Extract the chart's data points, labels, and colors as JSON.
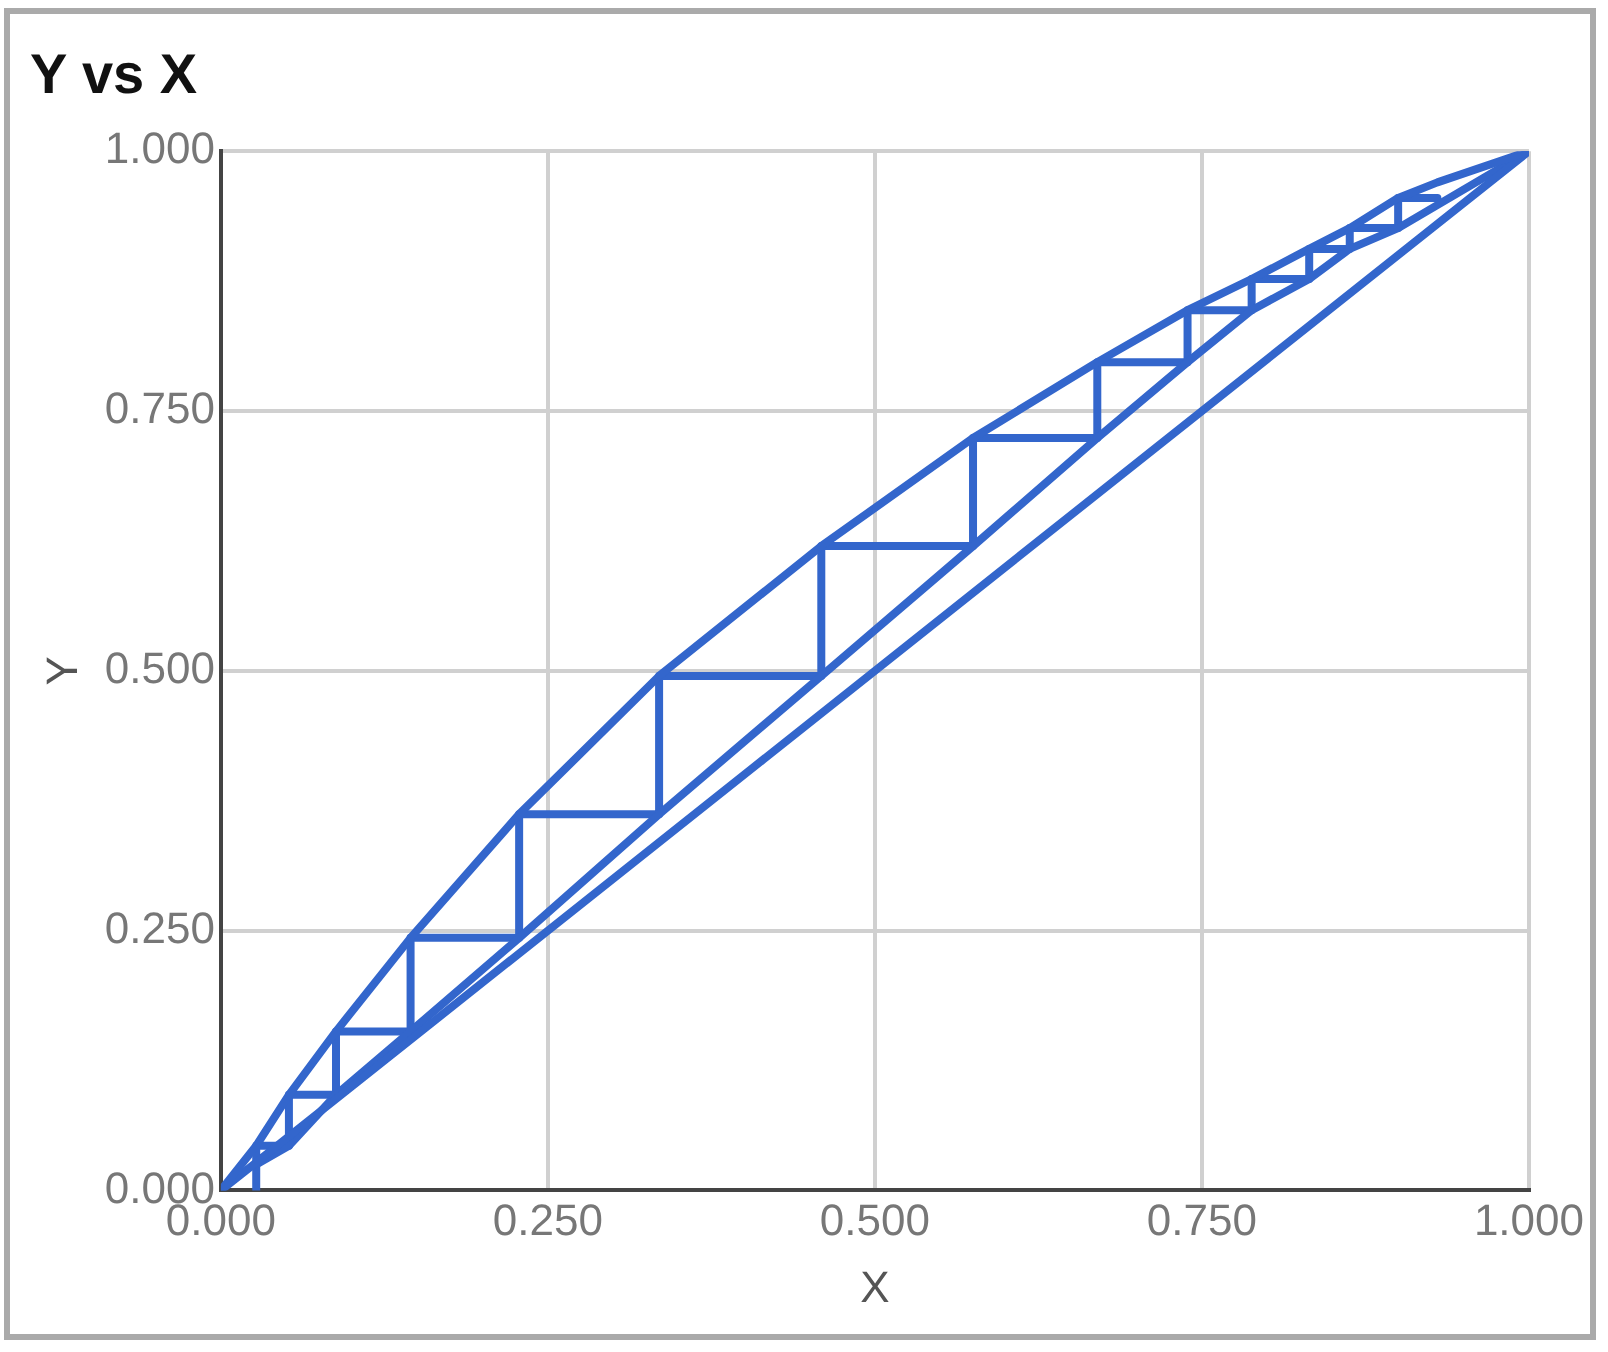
{
  "chart_data": {
    "type": "line",
    "title": "Y vs X",
    "xlabel": "X",
    "ylabel": "Y",
    "xlim": [
      0,
      1
    ],
    "ylim": [
      0,
      1
    ],
    "xticks": [
      {
        "value": 0,
        "label": "0.000"
      },
      {
        "value": 0.25,
        "label": "0.250"
      },
      {
        "value": 0.5,
        "label": "0.500"
      },
      {
        "value": 0.75,
        "label": "0.750"
      },
      {
        "value": 1,
        "label": "1.000"
      }
    ],
    "yticks": [
      {
        "value": 0,
        "label": "0.000"
      },
      {
        "value": 0.25,
        "label": "0.250"
      },
      {
        "value": 0.5,
        "label": "0.500"
      },
      {
        "value": 0.75,
        "label": "0.750"
      },
      {
        "value": 1,
        "label": "1.000"
      }
    ],
    "grid": true,
    "legend": false,
    "marker": "none",
    "line_style": "solid",
    "series": [
      {
        "color": "#3366cc",
        "x": [
          0,
          0.027,
          0.052,
          0.088,
          0.145,
          0.228,
          0.335,
          0.459,
          0.575,
          0.67,
          0.739,
          0.788,
          0.832,
          0.863,
          0.9,
          0.93,
          1
        ],
        "values": [
          0,
          0.043,
          0.092,
          0.153,
          0.243,
          0.362,
          0.495,
          0.62,
          0.724,
          0.797,
          0.847,
          0.877,
          0.906,
          0.926,
          0.955,
          0.97,
          1
        ]
      },
      {
        "color": "#3366cc",
        "x": [
          0,
          1
        ],
        "values": [
          0,
          1
        ]
      },
      {
        "color": "#3366cc",
        "x": [
          0.027,
          0.052,
          0.088,
          0.145,
          0.228,
          0.335,
          0.459,
          0.575,
          0.67,
          0.739,
          0.788,
          0.832,
          0.863,
          0.9,
          1
        ],
        "values": [
          0.025,
          0.043,
          0.092,
          0.153,
          0.243,
          0.362,
          0.495,
          0.62,
          0.724,
          0.797,
          0.847,
          0.877,
          0.906,
          0.926,
          1
        ]
      },
      {
        "color": "#3366cc",
        "x": [
          0.93,
          0.9,
          0.9,
          0.863,
          0.863,
          0.832,
          0.832,
          0.788,
          0.788,
          0.739,
          0.739,
          0.67,
          0.67,
          0.575,
          0.575,
          0.459,
          0.459,
          0.335,
          0.335,
          0.228,
          0.228,
          0.145,
          0.145,
          0.088,
          0.088,
          0.052,
          0.052,
          0.027,
          0.027
        ],
        "values": [
          0.955,
          0.955,
          0.926,
          0.926,
          0.906,
          0.906,
          0.877,
          0.877,
          0.847,
          0.847,
          0.797,
          0.797,
          0.724,
          0.724,
          0.62,
          0.62,
          0.495,
          0.495,
          0.362,
          0.362,
          0.243,
          0.243,
          0.153,
          0.153,
          0.092,
          0.092,
          0.043,
          0.043,
          0
        ]
      }
    ]
  }
}
